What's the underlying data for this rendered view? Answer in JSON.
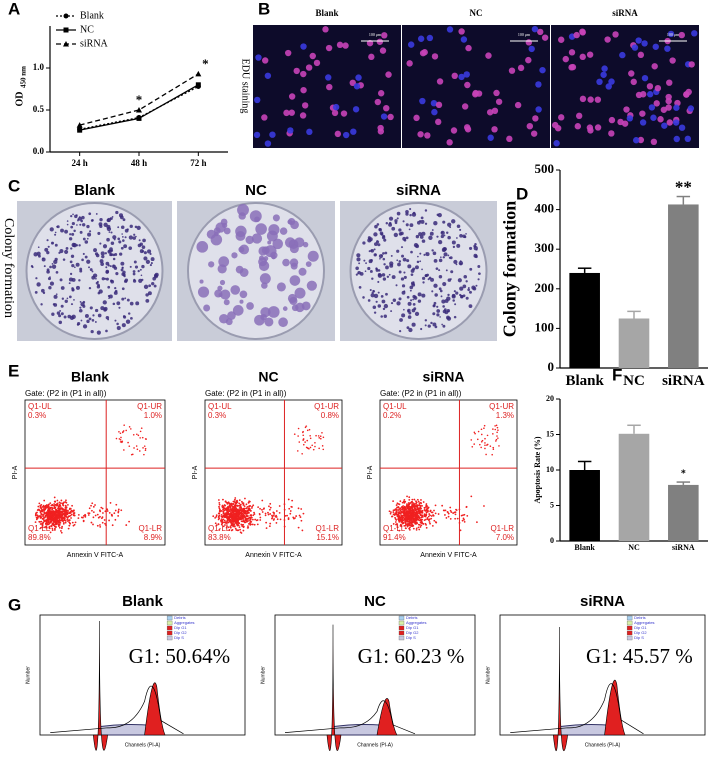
{
  "panel_labels": [
    "A",
    "B",
    "C",
    "D",
    "E",
    "F",
    "G"
  ],
  "chart_data": [
    {
      "type": "line",
      "y_label": "OD",
      "y_label_sub": "450 nm",
      "categories": [
        "24 h",
        "48 h",
        "72 h"
      ],
      "series": [
        {
          "name": "Blank",
          "color": "#000000",
          "line_style": "dotted",
          "marker": "circle",
          "values": [
            0.27,
            0.41,
            0.78
          ]
        },
        {
          "name": "NC",
          "color": "#000000",
          "line_style": "solid",
          "marker": "square",
          "values": [
            0.26,
            0.4,
            0.8
          ]
        },
        {
          "name": "siRNA",
          "color": "#000000",
          "line_style": "dashed",
          "marker": "triangle",
          "values": [
            0.32,
            0.5,
            0.93
          ]
        }
      ],
      "annotations": [
        null,
        "*",
        "*"
      ],
      "ylim": [
        0,
        1.5
      ],
      "yticks": [
        {
          "value": 0,
          "label": "0.0"
        },
        {
          "value": 0.5,
          "label": "0.5"
        },
        {
          "value": 1,
          "label": "1.0"
        }
      ],
      "legend": "top-left"
    },
    {
      "type": "bar",
      "y_label": "Colony formation",
      "categories": [
        "Blank",
        "NC",
        "siRNA"
      ],
      "values": [
        240,
        125,
        413
      ],
      "errors": [
        12,
        18,
        20
      ],
      "colors": [
        "#000000",
        "#a6a6a6",
        "#808080"
      ],
      "annotations": [
        null,
        null,
        "**"
      ],
      "ylim": [
        0,
        500
      ],
      "yticks": [
        0,
        100,
        200,
        300,
        400,
        500
      ]
    },
    {
      "type": "bar",
      "y_label": "Apoptosis Rate (%)",
      "categories": [
        "Blank",
        "NC",
        "siRNA"
      ],
      "values": [
        10,
        15.1,
        7.9
      ],
      "errors": [
        1.2,
        1.2,
        0.4
      ],
      "colors": [
        "#000000",
        "#a6a6a6",
        "#808080"
      ],
      "annotations": [
        null,
        null,
        "*"
      ],
      "ylim": [
        0,
        20
      ],
      "yticks": [
        0,
        5,
        10,
        15,
        20
      ]
    }
  ],
  "edu_panel": {
    "side_label": "EDU staining",
    "images": [
      {
        "title": "Blank",
        "scale": "100 μm"
      },
      {
        "title": "NC",
        "scale": "100 μm"
      },
      {
        "title": "siRNA",
        "scale": "100 μm"
      }
    ]
  },
  "colony_panel": {
    "side_label": "Colony formation",
    "titles": [
      "Blank",
      "NC",
      "siRNA"
    ]
  },
  "flow_panel": {
    "x_label": "Annexin V FITC-A",
    "y_label": "PI-A",
    "gate": "Gate: (P2 in (P1 in all))",
    "plots": [
      {
        "title": "Blank",
        "quadrants": [
          [
            "Q1-UL",
            "0.3%"
          ],
          [
            "Q1-UR",
            "1.0%"
          ],
          [
            "Q1-LL",
            "89.8%"
          ],
          [
            "Q1-LR",
            "8.9%"
          ]
        ]
      },
      {
        "title": "NC",
        "quadrants": [
          [
            "Q1-UL",
            "0.3%"
          ],
          [
            "Q1-UR",
            "0.8%"
          ],
          [
            "Q1-LL",
            "83.8%"
          ],
          [
            "Q1-LR",
            "15.1%"
          ]
        ]
      },
      {
        "title": "siRNA",
        "quadrants": [
          [
            "Q1-UL",
            "0.2%"
          ],
          [
            "Q1-UR",
            "1.3%"
          ],
          [
            "Q1-LL",
            "91.4%"
          ],
          [
            "Q1-LR",
            "7.0%"
          ]
        ]
      }
    ]
  },
  "cycle_panel": {
    "x_label": "Channels (PI-A)",
    "y_label": "Number",
    "legend": [
      "Debris",
      "Aggregates",
      "Dip G1",
      "Dip G2",
      "Dip S"
    ],
    "plots": [
      {
        "title": "Blank",
        "g1": "G1: 50.64%"
      },
      {
        "title": "NC",
        "g1": "G1: 60.23 %"
      },
      {
        "title": "siRNA",
        "g1": "G1: 45.57 %"
      }
    ]
  }
}
